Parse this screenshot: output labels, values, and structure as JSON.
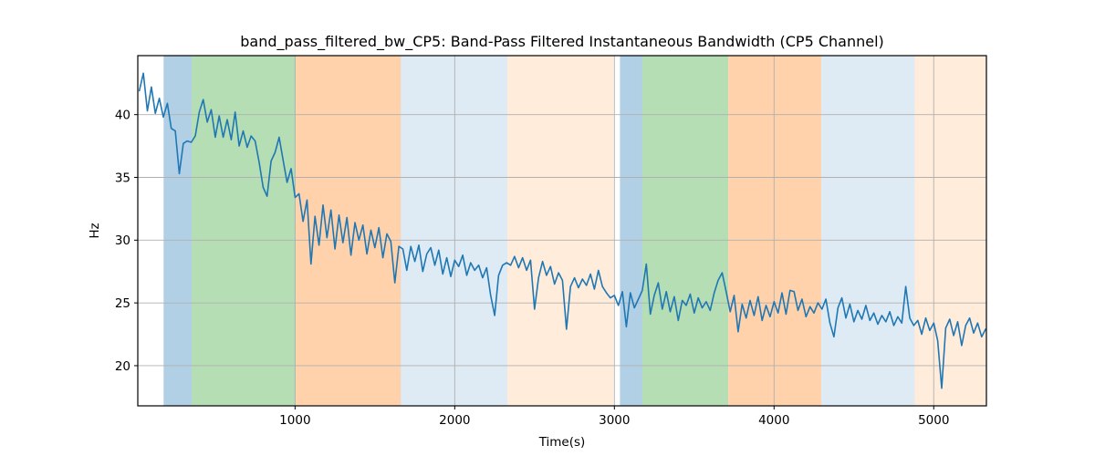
{
  "figure": {
    "background": "#ffffff",
    "plot_background": "#ffffff",
    "grid_color": "#b0b0b0",
    "spine_color": "#000000"
  },
  "chart_data": {
    "type": "line",
    "title": "band_pass_filtered_bw_CP5: Band-Pass Filtered Instantaneous Bandwidth (CP5 Channel)",
    "xlabel": "Time(s)",
    "ylabel": "Hz",
    "xlim": [
      15,
      5330
    ],
    "ylim": [
      16.8,
      44.7
    ],
    "xticks": [
      1000,
      2000,
      3000,
      4000,
      5000
    ],
    "yticks": [
      20,
      25,
      30,
      35,
      40
    ],
    "grid": true,
    "legend": "none",
    "line_color": "#1f77b4",
    "line_width": 1.6,
    "bands": [
      {
        "t0": 177,
        "t1": 353,
        "kind": "blue",
        "color": "rgba(31,119,180,0.35)"
      },
      {
        "t0": 353,
        "t1": 1004,
        "kind": "green",
        "color": "rgba(44,160,44,0.35)"
      },
      {
        "t0": 1004,
        "t1": 1661,
        "kind": "orange",
        "color": "rgba(255,127,14,0.35)"
      },
      {
        "t0": 1661,
        "t1": 2330,
        "kind": "light-blue",
        "color": "rgba(31,119,180,0.15)"
      },
      {
        "t0": 2330,
        "t1": 2995,
        "kind": "light-orange",
        "color": "rgba(255,127,14,0.15)"
      },
      {
        "t0": 3035,
        "t1": 3175,
        "kind": "blue",
        "color": "rgba(31,119,180,0.35)"
      },
      {
        "t0": 3175,
        "t1": 3713,
        "kind": "green",
        "color": "rgba(44,160,44,0.35)"
      },
      {
        "t0": 3713,
        "t1": 4295,
        "kind": "orange",
        "color": "rgba(255,127,14,0.35)"
      },
      {
        "t0": 4295,
        "t1": 4880,
        "kind": "light-blue",
        "color": "rgba(31,119,180,0.15)"
      },
      {
        "t0": 4880,
        "t1": 5330,
        "kind": "light-orange",
        "color": "rgba(255,127,14,0.15)"
      }
    ],
    "series": [
      {
        "name": "band_pass_filtered_bw_CP5",
        "x": [
          25,
          50,
          75,
          100,
          125,
          150,
          175,
          200,
          225,
          250,
          275,
          300,
          325,
          350,
          375,
          400,
          425,
          450,
          475,
          500,
          525,
          550,
          575,
          600,
          625,
          650,
          675,
          700,
          725,
          750,
          775,
          800,
          825,
          850,
          875,
          900,
          925,
          950,
          975,
          1000,
          1025,
          1050,
          1075,
          1100,
          1125,
          1150,
          1175,
          1200,
          1225,
          1250,
          1275,
          1300,
          1325,
          1350,
          1375,
          1400,
          1425,
          1450,
          1475,
          1500,
          1525,
          1550,
          1575,
          1600,
          1625,
          1650,
          1675,
          1700,
          1725,
          1750,
          1775,
          1800,
          1825,
          1850,
          1875,
          1900,
          1925,
          1950,
          1975,
          2000,
          2025,
          2050,
          2075,
          2100,
          2125,
          2150,
          2175,
          2200,
          2225,
          2250,
          2275,
          2300,
          2325,
          2350,
          2375,
          2400,
          2425,
          2450,
          2475,
          2500,
          2525,
          2550,
          2575,
          2600,
          2625,
          2650,
          2675,
          2700,
          2725,
          2750,
          2775,
          2800,
          2825,
          2850,
          2875,
          2900,
          2925,
          2950,
          2975,
          3000,
          3025,
          3050,
          3075,
          3100,
          3125,
          3150,
          3175,
          3200,
          3225,
          3250,
          3275,
          3300,
          3325,
          3350,
          3375,
          3400,
          3425,
          3450,
          3475,
          3500,
          3525,
          3550,
          3575,
          3600,
          3625,
          3650,
          3675,
          3700,
          3725,
          3750,
          3775,
          3800,
          3825,
          3850,
          3875,
          3900,
          3925,
          3950,
          3975,
          4000,
          4025,
          4050,
          4075,
          4100,
          4125,
          4150,
          4175,
          4200,
          4225,
          4250,
          4275,
          4300,
          4325,
          4350,
          4375,
          4400,
          4425,
          4450,
          4475,
          4500,
          4525,
          4550,
          4575,
          4600,
          4625,
          4650,
          4675,
          4700,
          4725,
          4750,
          4775,
          4800,
          4825,
          4850,
          4875,
          4900,
          4925,
          4950,
          4975,
          5000,
          5025,
          5050,
          5075,
          5100,
          5125,
          5150,
          5175,
          5200,
          5225,
          5250,
          5275,
          5300,
          5325
        ],
        "y": [
          41.9,
          43.3,
          40.3,
          42.2,
          40.1,
          41.3,
          39.8,
          40.9,
          38.9,
          38.7,
          35.3,
          37.7,
          37.9,
          37.8,
          38.3,
          40.2,
          41.2,
          39.4,
          40.4,
          38.2,
          39.9,
          38.2,
          39.6,
          38.0,
          40.2,
          37.5,
          38.7,
          37.4,
          38.3,
          37.9,
          36.2,
          34.2,
          33.5,
          36.3,
          37.0,
          38.2,
          36.4,
          34.6,
          35.7,
          33.4,
          33.7,
          31.5,
          33.2,
          28.1,
          31.9,
          29.6,
          32.8,
          30.2,
          32.4,
          29.3,
          32.0,
          29.8,
          31.8,
          28.8,
          31.4,
          30.0,
          31.2,
          28.9,
          30.8,
          29.4,
          31.0,
          28.6,
          30.5,
          29.9,
          26.6,
          29.5,
          29.3,
          27.6,
          29.5,
          28.3,
          29.6,
          27.5,
          28.9,
          29.4,
          28.0,
          29.2,
          27.3,
          28.6,
          27.1,
          28.4,
          27.9,
          28.8,
          27.2,
          28.2,
          27.6,
          28.0,
          27.0,
          27.8,
          25.6,
          24.0,
          27.2,
          28.0,
          28.2,
          28.0,
          28.7,
          27.8,
          28.6,
          27.6,
          28.4,
          24.5,
          27.0,
          28.3,
          27.2,
          27.9,
          26.5,
          27.4,
          26.8,
          22.9,
          26.3,
          27.0,
          26.2,
          26.9,
          26.4,
          27.3,
          26.1,
          27.6,
          26.3,
          25.8,
          25.4,
          25.6,
          24.8,
          25.9,
          23.1,
          25.8,
          24.6,
          25.3,
          26.0,
          28.1,
          24.1,
          25.6,
          26.6,
          24.5,
          25.9,
          24.3,
          25.5,
          23.6,
          25.2,
          24.8,
          25.7,
          24.2,
          25.4,
          24.6,
          25.1,
          24.4,
          25.8,
          26.8,
          27.4,
          25.9,
          24.3,
          25.6,
          22.7,
          24.9,
          23.8,
          25.2,
          24.0,
          25.5,
          23.6,
          24.8,
          23.9,
          25.1,
          24.2,
          25.8,
          24.1,
          26.0,
          25.9,
          24.4,
          25.3,
          23.9,
          24.7,
          24.2,
          25.0,
          24.5,
          25.3,
          23.4,
          22.3,
          24.6,
          25.4,
          23.8,
          24.9,
          23.5,
          24.4,
          23.7,
          24.8,
          23.6,
          24.2,
          23.3,
          24.0,
          23.5,
          24.3,
          23.2,
          23.9,
          23.4,
          26.3,
          23.8,
          23.2,
          23.6,
          22.5,
          23.8,
          22.8,
          23.4,
          22.0,
          18.2,
          23.0,
          23.7,
          22.4,
          23.5,
          21.6,
          23.2,
          23.8,
          22.6,
          23.4,
          22.3,
          22.9
        ]
      }
    ]
  }
}
